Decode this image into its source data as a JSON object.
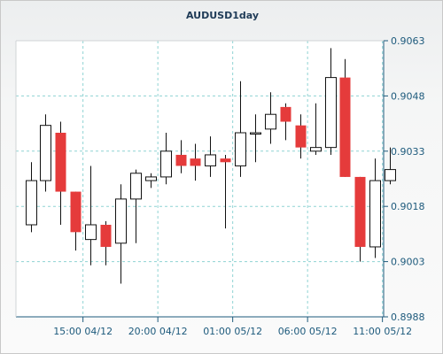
{
  "chart_data": {
    "type": "candlestick",
    "title": "AUDUSD1day",
    "y_ticks": [
      0.8988,
      0.9003,
      0.9018,
      0.9033,
      0.9048,
      0.9063
    ],
    "y_tick_labels": [
      "0.8988",
      "0.9003",
      "0.9018",
      "0.9033",
      "0.9048",
      "0.9063"
    ],
    "ylim": [
      0.8988,
      0.9063
    ],
    "x_tick_labels": [
      {
        "label": "15:00 04/12",
        "index": 3.5
      },
      {
        "label": "20:00 04/12",
        "index": 8.5
      },
      {
        "label": "01:00 05/12",
        "index": 13.5
      },
      {
        "label": "06:00 05/12",
        "index": 18.5
      },
      {
        "label": "11:00 05/12",
        "index": 23.5
      }
    ],
    "grid": true,
    "colors": {
      "bull_fill": "#ffffff",
      "bear_fill": "#e53b3b",
      "candle_stroke": "#111111",
      "grid": "#8fd3d3",
      "axis": "#1d5a7c",
      "plot_bg": "#ffffff",
      "title": "#1f3b57"
    },
    "candles": [
      {
        "open": 0.9013,
        "high": 0.903,
        "low": 0.9011,
        "close": 0.9025
      },
      {
        "open": 0.9025,
        "high": 0.9043,
        "low": 0.9022,
        "close": 0.904
      },
      {
        "open": 0.9038,
        "high": 0.9041,
        "low": 0.9013,
        "close": 0.9022
      },
      {
        "open": 0.9022,
        "high": 0.9022,
        "low": 0.9006,
        "close": 0.9011
      },
      {
        "open": 0.9009,
        "high": 0.9029,
        "low": 0.9002,
        "close": 0.9013
      },
      {
        "open": 0.9013,
        "high": 0.9014,
        "low": 0.9002,
        "close": 0.9007
      },
      {
        "open": 0.9008,
        "high": 0.9024,
        "low": 0.8997,
        "close": 0.902
      },
      {
        "open": 0.902,
        "high": 0.9028,
        "low": 0.9008,
        "close": 0.9027
      },
      {
        "open": 0.9025,
        "high": 0.9027,
        "low": 0.9023,
        "close": 0.9026
      },
      {
        "open": 0.9026,
        "high": 0.9038,
        "low": 0.9024,
        "close": 0.9033
      },
      {
        "open": 0.9032,
        "high": 0.9036,
        "low": 0.9027,
        "close": 0.9029
      },
      {
        "open": 0.9031,
        "high": 0.9035,
        "low": 0.9025,
        "close": 0.9029
      },
      {
        "open": 0.9029,
        "high": 0.9037,
        "low": 0.9026,
        "close": 0.9032
      },
      {
        "open": 0.9031,
        "high": 0.9032,
        "low": 0.9012,
        "close": 0.903
      },
      {
        "open": 0.9029,
        "high": 0.9052,
        "low": 0.9026,
        "close": 0.9038
      },
      {
        "open": 0.9038,
        "high": 0.9043,
        "low": 0.903,
        "close": 0.9038
      },
      {
        "open": 0.9039,
        "high": 0.9049,
        "low": 0.9035,
        "close": 0.9043
      },
      {
        "open": 0.9045,
        "high": 0.9046,
        "low": 0.9036,
        "close": 0.9041
      },
      {
        "open": 0.904,
        "high": 0.9043,
        "low": 0.9031,
        "close": 0.9034
      },
      {
        "open": 0.9033,
        "high": 0.9046,
        "low": 0.9032,
        "close": 0.9034
      },
      {
        "open": 0.9034,
        "high": 0.9061,
        "low": 0.9032,
        "close": 0.9053
      },
      {
        "open": 0.9053,
        "high": 0.9058,
        "low": 0.9026,
        "close": 0.9026
      },
      {
        "open": 0.9026,
        "high": 0.9026,
        "low": 0.9003,
        "close": 0.9007
      },
      {
        "open": 0.9007,
        "high": 0.9031,
        "low": 0.9004,
        "close": 0.9025
      },
      {
        "open": 0.9025,
        "high": 0.9034,
        "low": 0.9024,
        "close": 0.9028
      }
    ]
  }
}
